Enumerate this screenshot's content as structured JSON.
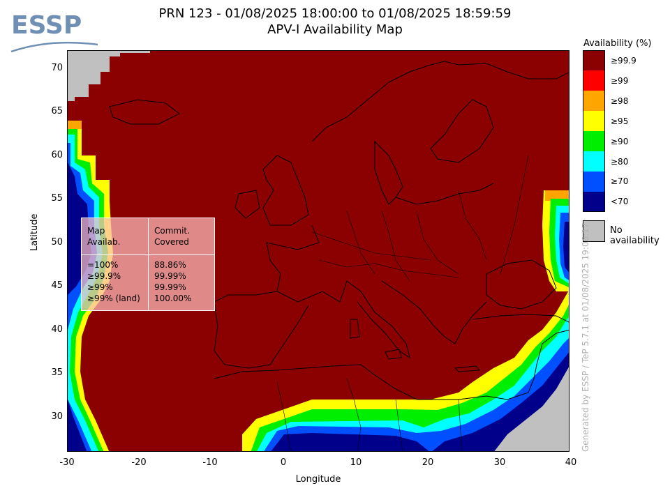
{
  "header": {
    "title_line1": "PRN 123 - 01/08/2025 18:00:00 to 01/08/2025 18:59:59",
    "title_line2": "APV-I Availability Map",
    "logo_text": "ESSP"
  },
  "map": {
    "xlabel": "Longitude",
    "ylabel": "Latitude",
    "lon_range": [
      -30,
      40
    ],
    "lat_range": [
      26,
      72
    ],
    "x_ticks": [
      "-30",
      "-20",
      "-10",
      "0",
      "10",
      "20",
      "30",
      "40"
    ],
    "y_ticks": [
      "70",
      "65",
      "60",
      "55",
      "50",
      "45",
      "40",
      "35",
      "30"
    ],
    "credit": "Generated by ESSP / TeP 5.7.1 at 01/08/2025 19:06:17"
  },
  "legend": {
    "title": "Availability (%)",
    "bins": [
      {
        "label": "≥99.9",
        "color": "#8b0000"
      },
      {
        "label": "≥99",
        "color": "#ff0000"
      },
      {
        "label": "≥98",
        "color": "#ffa500"
      },
      {
        "label": "≥95",
        "color": "#ffff00"
      },
      {
        "label": "≥90",
        "color": "#00ee00"
      },
      {
        "label": "≥80",
        "color": "#00ffff"
      },
      {
        "label": "≥70",
        "color": "#0050ff"
      },
      {
        "label": "<70",
        "color": "#00008b"
      }
    ],
    "no_availability": {
      "label": "No availability",
      "color": "#c0c0c0"
    }
  },
  "stats_table": {
    "col1_header": "Map\nAvailab.",
    "col2_header": "Commit.\nCovered",
    "col1_values": "=100%\n≥99.9%\n≥99%\n≥99% (land)",
    "col2_values": "88.86%\n99.99%\n99.99%\n100.00%"
  }
}
